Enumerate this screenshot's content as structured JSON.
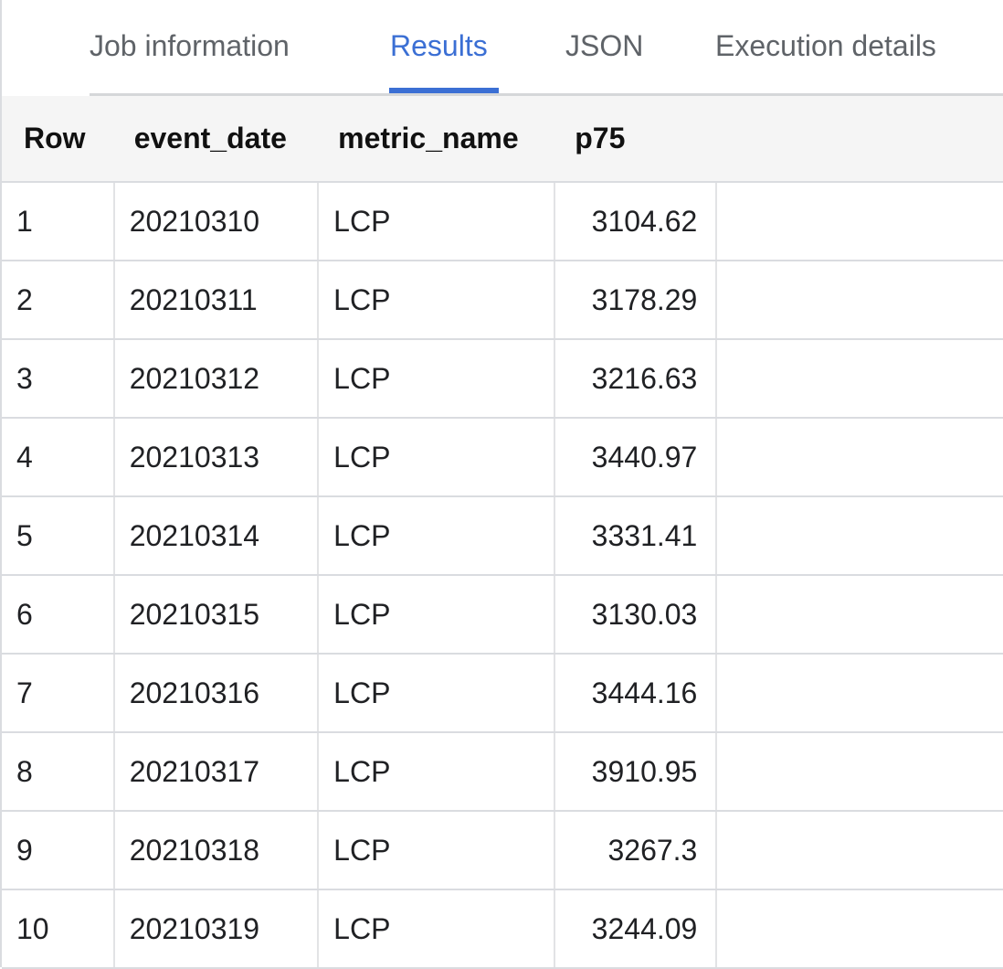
{
  "tabs": [
    {
      "label": "Job information",
      "active": false
    },
    {
      "label": "Results",
      "active": true
    },
    {
      "label": "JSON",
      "active": false
    },
    {
      "label": "Execution details",
      "active": false
    }
  ],
  "accent": "#3b6fd4",
  "table": {
    "headers": [
      "Row",
      "event_date",
      "metric_name",
      "p75"
    ],
    "rows": [
      [
        "1",
        "20210310",
        "LCP",
        "3104.62"
      ],
      [
        "2",
        "20210311",
        "LCP",
        "3178.29"
      ],
      [
        "3",
        "20210312",
        "LCP",
        "3216.63"
      ],
      [
        "4",
        "20210313",
        "LCP",
        "3440.97"
      ],
      [
        "5",
        "20210314",
        "LCP",
        "3331.41"
      ],
      [
        "6",
        "20210315",
        "LCP",
        "3130.03"
      ],
      [
        "7",
        "20210316",
        "LCP",
        "3444.16"
      ],
      [
        "8",
        "20210317",
        "LCP",
        "3910.95"
      ],
      [
        "9",
        "20210318",
        "LCP",
        "3267.3"
      ],
      [
        "10",
        "20210319",
        "LCP",
        "3244.09"
      ]
    ]
  }
}
